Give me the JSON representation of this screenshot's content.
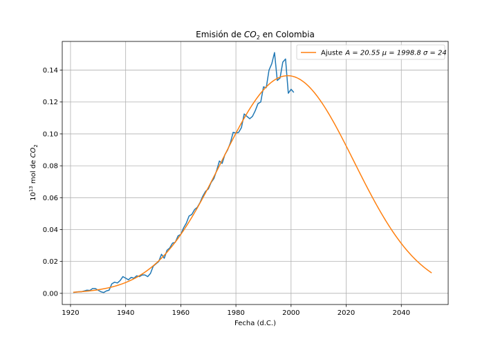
{
  "chart_data": {
    "type": "line",
    "title": "Emisión de CO₂ en Colombia",
    "xlabel": "Fecha (d.C.)",
    "ylabel": "10¹³ mol de CO₂",
    "xlim": [
      1917,
      2057
    ],
    "ylim": [
      -0.007,
      0.158
    ],
    "x_ticks": [
      1920,
      1940,
      1960,
      1980,
      2000,
      2020,
      2040
    ],
    "y_ticks": [
      0.0,
      0.02,
      0.04,
      0.06,
      0.08,
      0.1,
      0.12,
      0.14
    ],
    "y_tick_labels": [
      "0.00",
      "0.02",
      "0.04",
      "0.06",
      "0.08",
      "0.10",
      "0.12",
      "0.14"
    ],
    "grid": true,
    "legend_position": "top-right",
    "series": [
      {
        "name": "",
        "color": "#1f77b4",
        "x": [
          1921,
          1922,
          1923,
          1924,
          1925,
          1926,
          1927,
          1928,
          1929,
          1930,
          1931,
          1932,
          1933,
          1934,
          1935,
          1936,
          1937,
          1938,
          1939,
          1940,
          1941,
          1942,
          1943,
          1944,
          1945,
          1946,
          1947,
          1948,
          1949,
          1950,
          1951,
          1952,
          1953,
          1954,
          1955,
          1956,
          1957,
          1958,
          1959,
          1960,
          1961,
          1962,
          1963,
          1964,
          1965,
          1966,
          1967,
          1968,
          1969,
          1970,
          1971,
          1972,
          1973,
          1974,
          1975,
          1976,
          1977,
          1978,
          1979,
          1980,
          1981,
          1982,
          1983,
          1984,
          1985,
          1986,
          1987,
          1988,
          1989,
          1990,
          1991,
          1992,
          1993,
          1994,
          1995,
          1996,
          1997,
          1998,
          1999,
          2000,
          2001
        ],
        "values": [
          0.0005,
          0.0008,
          0.001,
          0.001,
          0.0015,
          0.002,
          0.0018,
          0.003,
          0.003,
          0.002,
          0.001,
          0.0005,
          0.0015,
          0.002,
          0.006,
          0.007,
          0.0065,
          0.008,
          0.0105,
          0.0095,
          0.0085,
          0.01,
          0.0095,
          0.011,
          0.0105,
          0.0115,
          0.0115,
          0.0105,
          0.0125,
          0.017,
          0.0185,
          0.02,
          0.0245,
          0.022,
          0.027,
          0.0285,
          0.0315,
          0.032,
          0.036,
          0.037,
          0.041,
          0.044,
          0.0485,
          0.0495,
          0.0525,
          0.054,
          0.057,
          0.061,
          0.064,
          0.0655,
          0.0695,
          0.072,
          0.077,
          0.083,
          0.0815,
          0.087,
          0.09,
          0.0945,
          0.101,
          0.1005,
          0.101,
          0.104,
          0.1125,
          0.111,
          0.1095,
          0.111,
          0.1145,
          0.119,
          0.12,
          0.1295,
          0.129,
          0.14,
          0.144,
          0.151,
          0.1335,
          0.135,
          0.145,
          0.147,
          0.1255,
          0.128,
          0.126
        ]
      },
      {
        "name": "Ajuste A=20.55 μ=1998.8 σ=24",
        "color": "#ff7f0e",
        "fit": {
          "A": 20.55,
          "mu": 1998.8,
          "sigma": 24,
          "peak": 0.1365,
          "x_start": 1921,
          "x_end": 2051
        }
      }
    ]
  },
  "legend": {
    "label_prefix": "Ajuste",
    "label_math": "A = 20.55  μ = 1998.8  σ = 24"
  }
}
